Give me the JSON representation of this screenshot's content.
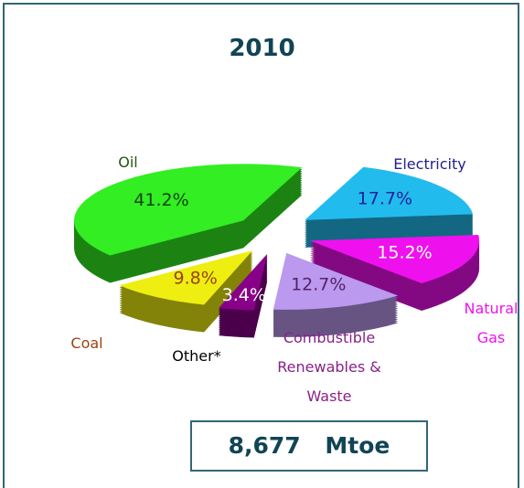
{
  "chart_data": {
    "type": "pie3d",
    "title": "2010",
    "categories": [
      "Oil",
      "Electricity",
      "Natural Gas",
      "Combustible Renewables & Waste",
      "Other*",
      "Coal"
    ],
    "values": [
      41.2,
      17.7,
      15.2,
      12.7,
      3.4,
      9.8
    ],
    "value_labels": [
      "41.2%",
      "17.7%",
      "15.2%",
      "12.7%",
      "3.4%",
      "9.8%"
    ],
    "colors": [
      "#33ee22",
      "#22bbee",
      "#ee11ee",
      "#bb99ee",
      "#880088",
      "#eeee11"
    ],
    "total": "8,677 Mtoe"
  }
}
